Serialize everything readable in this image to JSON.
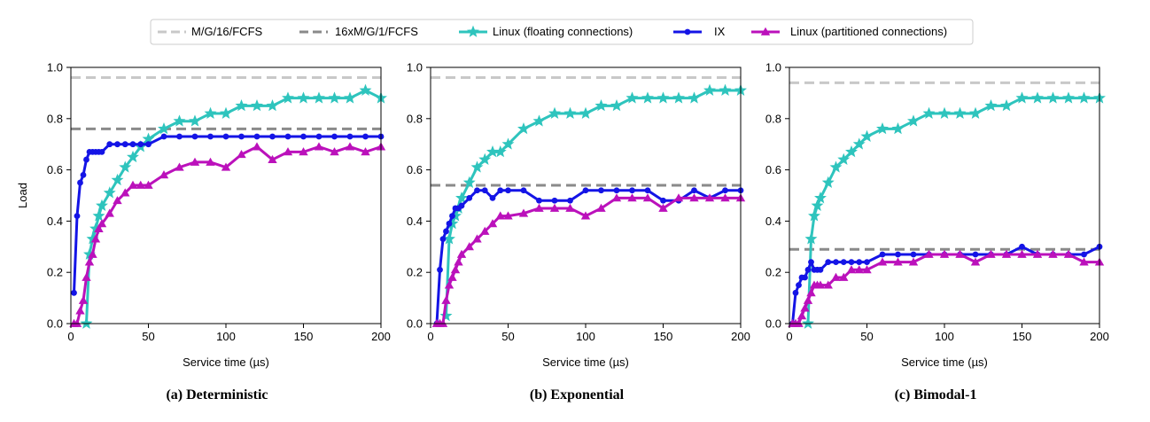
{
  "legend": {
    "items": [
      {
        "label": "M/G/16/FCFS",
        "color": "#c8c8c8",
        "style": "dashed",
        "marker": "none"
      },
      {
        "label": "16xM/G/1/FCFS",
        "color": "#8a8a8a",
        "style": "dashed",
        "marker": "none"
      },
      {
        "label": "Linux (floating connections)",
        "color": "#2ec4bd",
        "style": "solid",
        "marker": "star"
      },
      {
        "label": "IX",
        "color": "#1414e6",
        "style": "solid",
        "marker": "circle"
      },
      {
        "label": "Linux (partitioned connections)",
        "color": "#bb11bb",
        "style": "solid",
        "marker": "triangle"
      }
    ]
  },
  "chart_data": [
    {
      "type": "line",
      "title": "(a) Deterministic",
      "xlabel": "Service time (µs)",
      "ylabel": "Load",
      "xlim": [
        0,
        200
      ],
      "ylim": [
        0,
        1.0
      ],
      "xticks": [
        "0",
        "50",
        "100",
        "150",
        "200"
      ],
      "yticks": [
        "0.0",
        "0.2",
        "0.4",
        "0.6",
        "0.8",
        "1.0"
      ],
      "hlines": [
        {
          "name": "M/G/16/FCFS",
          "y": 0.96,
          "color": "#c8c8c8"
        },
        {
          "name": "16xM/G/1/FCFS",
          "y": 0.76,
          "color": "#8a8a8a"
        }
      ],
      "series": [
        {
          "name": "Linux (floating connections)",
          "marker": "star",
          "color": "#2ec4bd",
          "x": [
            10,
            12,
            14,
            16,
            18,
            20,
            25,
            30,
            35,
            40,
            45,
            50,
            60,
            70,
            80,
            90,
            100,
            110,
            120,
            130,
            140,
            150,
            160,
            170,
            180,
            190,
            200
          ],
          "y": [
            0.0,
            0.27,
            0.33,
            0.37,
            0.42,
            0.46,
            0.51,
            0.56,
            0.61,
            0.65,
            0.69,
            0.72,
            0.76,
            0.79,
            0.79,
            0.82,
            0.82,
            0.85,
            0.85,
            0.85,
            0.88,
            0.88,
            0.88,
            0.88,
            0.88,
            0.91,
            0.88
          ]
        },
        {
          "name": "IX",
          "marker": "circle",
          "color": "#1414e6",
          "x": [
            2,
            4,
            6,
            8,
            10,
            12,
            14,
            16,
            18,
            20,
            25,
            30,
            35,
            40,
            45,
            50,
            60,
            70,
            80,
            90,
            100,
            110,
            120,
            130,
            140,
            150,
            160,
            170,
            180,
            190,
            200
          ],
          "y": [
            0.12,
            0.42,
            0.55,
            0.58,
            0.64,
            0.67,
            0.67,
            0.67,
            0.67,
            0.67,
            0.7,
            0.7,
            0.7,
            0.7,
            0.7,
            0.7,
            0.73,
            0.73,
            0.73,
            0.73,
            0.73,
            0.73,
            0.73,
            0.73,
            0.73,
            0.73,
            0.73,
            0.73,
            0.73,
            0.73,
            0.73
          ]
        },
        {
          "name": "Linux (partitioned connections)",
          "marker": "triangle",
          "color": "#bb11bb",
          "x": [
            2,
            4,
            6,
            8,
            10,
            12,
            14,
            16,
            18,
            20,
            25,
            30,
            35,
            40,
            45,
            50,
            60,
            70,
            80,
            90,
            100,
            110,
            120,
            130,
            140,
            150,
            160,
            170,
            180,
            190,
            200
          ],
          "y": [
            0.0,
            0.0,
            0.05,
            0.09,
            0.18,
            0.24,
            0.27,
            0.33,
            0.37,
            0.39,
            0.43,
            0.48,
            0.51,
            0.54,
            0.54,
            0.54,
            0.58,
            0.61,
            0.63,
            0.63,
            0.61,
            0.66,
            0.69,
            0.64,
            0.67,
            0.67,
            0.69,
            0.67,
            0.69,
            0.67,
            0.69
          ]
        }
      ]
    },
    {
      "type": "line",
      "title": "(b) Exponential",
      "xlabel": "Service time (µs)",
      "ylabel": "",
      "xlim": [
        0,
        200
      ],
      "ylim": [
        0,
        1.0
      ],
      "xticks": [
        "0",
        "50",
        "100",
        "150",
        "200"
      ],
      "yticks": [
        "0.0",
        "0.2",
        "0.4",
        "0.6",
        "0.8",
        "1.0"
      ],
      "hlines": [
        {
          "name": "M/G/16/FCFS",
          "y": 0.96,
          "color": "#c8c8c8"
        },
        {
          "name": "16xM/G/1/FCFS",
          "y": 0.54,
          "color": "#8a8a8a"
        }
      ],
      "series": [
        {
          "name": "Linux (floating connections)",
          "marker": "star",
          "color": "#2ec4bd",
          "x": [
            10,
            12,
            14,
            16,
            18,
            20,
            25,
            30,
            35,
            40,
            45,
            50,
            60,
            70,
            80,
            90,
            100,
            110,
            120,
            130,
            140,
            150,
            160,
            170,
            180,
            190,
            200
          ],
          "y": [
            0.03,
            0.33,
            0.39,
            0.42,
            0.45,
            0.49,
            0.55,
            0.61,
            0.64,
            0.67,
            0.67,
            0.7,
            0.76,
            0.79,
            0.82,
            0.82,
            0.82,
            0.85,
            0.85,
            0.88,
            0.88,
            0.88,
            0.88,
            0.88,
            0.91,
            0.91,
            0.91
          ]
        },
        {
          "name": "IX",
          "marker": "circle",
          "color": "#1414e6",
          "x": [
            4,
            6,
            8,
            10,
            12,
            14,
            16,
            18,
            20,
            25,
            30,
            35,
            40,
            45,
            50,
            60,
            70,
            80,
            90,
            100,
            110,
            120,
            130,
            140,
            150,
            160,
            170,
            180,
            190,
            200
          ],
          "y": [
            0.0,
            0.21,
            0.33,
            0.36,
            0.39,
            0.42,
            0.45,
            0.45,
            0.46,
            0.49,
            0.52,
            0.52,
            0.49,
            0.52,
            0.52,
            0.52,
            0.48,
            0.48,
            0.48,
            0.52,
            0.52,
            0.52,
            0.52,
            0.52,
            0.48,
            0.48,
            0.52,
            0.49,
            0.52,
            0.52
          ]
        },
        {
          "name": "Linux (partitioned connections)",
          "marker": "triangle",
          "color": "#bb11bb",
          "x": [
            4,
            6,
            8,
            10,
            12,
            14,
            16,
            18,
            20,
            25,
            30,
            35,
            40,
            45,
            50,
            60,
            70,
            80,
            90,
            100,
            110,
            120,
            130,
            140,
            150,
            160,
            170,
            180,
            190,
            200
          ],
          "y": [
            0.0,
            0.0,
            0.0,
            0.09,
            0.15,
            0.18,
            0.21,
            0.24,
            0.27,
            0.3,
            0.33,
            0.36,
            0.39,
            0.42,
            0.42,
            0.43,
            0.45,
            0.45,
            0.45,
            0.42,
            0.45,
            0.49,
            0.49,
            0.49,
            0.45,
            0.49,
            0.49,
            0.49,
            0.49,
            0.49
          ]
        }
      ]
    },
    {
      "type": "line",
      "title": "(c) Bimodal-1",
      "xlabel": "Service time (µs)",
      "ylabel": "",
      "xlim": [
        0,
        200
      ],
      "ylim": [
        0,
        1.0
      ],
      "xticks": [
        "0",
        "50",
        "100",
        "150",
        "200"
      ],
      "yticks": [
        "0.0",
        "0.2",
        "0.4",
        "0.6",
        "0.8",
        "1.0"
      ],
      "hlines": [
        {
          "name": "M/G/16/FCFS",
          "y": 0.94,
          "color": "#c8c8c8"
        },
        {
          "name": "16xM/G/1/FCFS",
          "y": 0.29,
          "color": "#8a8a8a"
        }
      ],
      "series": [
        {
          "name": "Linux (floating connections)",
          "marker": "star",
          "color": "#2ec4bd",
          "x": [
            12,
            14,
            16,
            18,
            20,
            25,
            30,
            35,
            40,
            45,
            50,
            60,
            70,
            80,
            90,
            100,
            110,
            120,
            130,
            140,
            150,
            160,
            170,
            180,
            190,
            200
          ],
          "y": [
            0.0,
            0.33,
            0.42,
            0.46,
            0.49,
            0.55,
            0.61,
            0.64,
            0.67,
            0.7,
            0.73,
            0.76,
            0.76,
            0.79,
            0.82,
            0.82,
            0.82,
            0.82,
            0.85,
            0.85,
            0.88,
            0.88,
            0.88,
            0.88,
            0.88,
            0.88
          ]
        },
        {
          "name": "IX",
          "marker": "circle",
          "color": "#1414e6",
          "x": [
            2,
            4,
            6,
            8,
            10,
            12,
            14,
            16,
            18,
            20,
            25,
            30,
            35,
            40,
            45,
            50,
            60,
            70,
            80,
            90,
            100,
            110,
            120,
            130,
            140,
            150,
            160,
            170,
            180,
            190,
            200
          ],
          "y": [
            0.0,
            0.12,
            0.15,
            0.18,
            0.18,
            0.21,
            0.24,
            0.21,
            0.21,
            0.21,
            0.24,
            0.24,
            0.24,
            0.24,
            0.24,
            0.24,
            0.27,
            0.27,
            0.27,
            0.27,
            0.27,
            0.27,
            0.27,
            0.27,
            0.27,
            0.3,
            0.27,
            0.27,
            0.27,
            0.27,
            0.3
          ]
        },
        {
          "name": "Linux (partitioned connections)",
          "marker": "triangle",
          "color": "#bb11bb",
          "x": [
            2,
            4,
            6,
            8,
            10,
            12,
            14,
            16,
            18,
            20,
            25,
            30,
            35,
            40,
            45,
            50,
            60,
            70,
            80,
            90,
            100,
            110,
            120,
            130,
            140,
            150,
            160,
            170,
            180,
            190,
            200
          ],
          "y": [
            0.0,
            0.0,
            0.0,
            0.03,
            0.06,
            0.09,
            0.12,
            0.15,
            0.15,
            0.15,
            0.15,
            0.18,
            0.18,
            0.21,
            0.21,
            0.21,
            0.24,
            0.24,
            0.24,
            0.27,
            0.27,
            0.27,
            0.24,
            0.27,
            0.27,
            0.27,
            0.27,
            0.27,
            0.27,
            0.24,
            0.24
          ]
        }
      ]
    }
  ]
}
